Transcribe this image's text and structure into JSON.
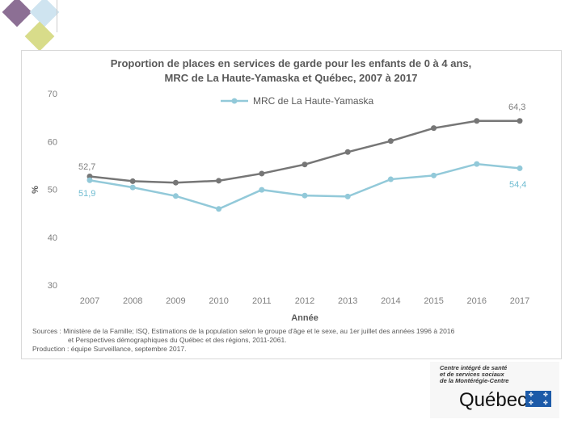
{
  "chart_data": {
    "type": "line",
    "title_line1": "Proportion de places en services de garde pour les enfants de 0 à 4 ans,",
    "title_line2": "MRC de La Haute-Yamaska et Québec, 2007 à 2017",
    "xlabel": "Année",
    "ylabel": "%",
    "ylim": [
      30,
      70
    ],
    "yticks": [
      "30",
      "40",
      "50",
      "60",
      "70"
    ],
    "categories": [
      "2007",
      "2008",
      "2009",
      "2010",
      "2011",
      "2012",
      "2013",
      "2014",
      "2015",
      "2016",
      "2017"
    ],
    "series": [
      {
        "name": "Québec",
        "color": "#767676",
        "values": [
          52.7,
          51.7,
          51.4,
          51.8,
          53.3,
          55.2,
          57.8,
          60.1,
          62.8,
          64.3,
          64.3
        ]
      },
      {
        "name": "MRC de La Haute-Yamaska",
        "color": "#92c9d9",
        "values": [
          51.9,
          50.4,
          48.6,
          45.9,
          49.9,
          48.7,
          48.5,
          52.1,
          52.9,
          55.3,
          54.4
        ]
      }
    ],
    "legend_label": "MRC de La Haute-Yamaska",
    "data_labels": {
      "gray_start": "52,7",
      "gray_end": "64,3",
      "blue_start": "51,9",
      "blue_end": "54,4"
    }
  },
  "footnote": {
    "line1": "Sources : Ministère de la Famille; ISQ, Estimations de la population selon le groupe d'âge et le sexe, au 1er juillet des années 1996 à 2016",
    "line2": "et Perspectives démographiques du Québec et des régions, 2011-2061.",
    "line3": "Production : équipe Surveillance, septembre 2017."
  },
  "logo": {
    "subtitle": "Centre intégré de santé et de services sociaux de la Montérégie-Centre",
    "name": "Québec",
    "flag_color": "#1c5aa8"
  }
}
